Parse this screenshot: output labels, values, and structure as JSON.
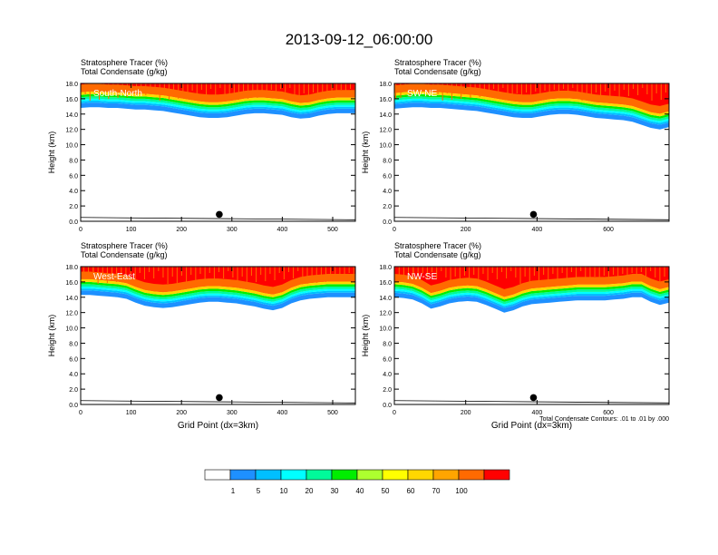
{
  "title": "2013-09-12_06:00:00",
  "colorbar": {
    "labels": [
      "1",
      "5",
      "10",
      "20",
      "30",
      "40",
      "50",
      "60",
      "70",
      "100"
    ],
    "colors": [
      "#ffffff",
      "#1e90ff",
      "#00bfff",
      "#00ffff",
      "#00fa9a",
      "#00ee00",
      "#adff2f",
      "#ffff00",
      "#ffd700",
      "#ffa500",
      "#ff6a00",
      "#ff0000"
    ]
  },
  "contour_note": "Total Condensate Contours: .01 to .01 by .000",
  "chart_data": [
    {
      "type": "heatmap",
      "label": "South-North",
      "line1": "Stratosphere Tracer   (%)",
      "line2": "Total Condensate   (g/kg)",
      "ylabel": "Height (km)",
      "xlabel": "",
      "xlim": [
        0,
        545
      ],
      "ylim": [
        0,
        18
      ],
      "xticks": [
        "0",
        "100",
        "200",
        "300",
        "400",
        "500"
      ],
      "xtick_values": [
        0,
        100,
        200,
        300,
        400,
        500
      ],
      "yticks": [
        "0.0",
        "2.0",
        "4.0",
        "6.0",
        "8.0",
        "10.0",
        "12.0",
        "14.0",
        "16.0",
        "18.0"
      ],
      "marker_x": 275,
      "tracer_base_km": [
        14.8,
        14.9,
        14.9,
        14.8,
        14.8,
        14.7,
        14.6,
        14.6,
        14.5,
        14.4,
        14.2,
        14.0,
        13.8,
        13.6,
        13.5,
        13.5,
        13.6,
        13.8,
        14.0,
        14.1,
        14.1,
        14.0,
        13.9,
        13.6,
        13.4,
        13.5,
        13.8,
        14.0,
        14.1,
        14.1,
        14.1
      ]
    },
    {
      "type": "heatmap",
      "label": "SW-NE",
      "line1": "Stratosphere Tracer   (%)",
      "line2": "Total Condensate   (g/kg)",
      "ylabel": "Height (km)",
      "xlabel": "",
      "xlim": [
        0,
        770
      ],
      "ylim": [
        0,
        18
      ],
      "xticks": [
        "0",
        "200",
        "400",
        "600"
      ],
      "xtick_values": [
        0,
        200,
        400,
        600
      ],
      "yticks": [
        "0.0",
        "2.0",
        "4.0",
        "6.0",
        "8.0",
        "10.0",
        "12.0",
        "14.0",
        "16.0",
        "18.0"
      ],
      "marker_x": 390,
      "tracer_base_km": [
        14.7,
        14.8,
        14.9,
        14.9,
        14.8,
        14.8,
        14.7,
        14.6,
        14.5,
        14.4,
        14.2,
        14.0,
        13.8,
        13.6,
        13.5,
        13.5,
        13.7,
        13.9,
        14.0,
        14.0,
        13.9,
        13.7,
        13.5,
        13.4,
        13.3,
        13.2,
        13.0,
        12.6,
        12.2,
        12.0,
        12.3
      ]
    },
    {
      "type": "heatmap",
      "label": "West-East",
      "line1": "Stratosphere Tracer   (%)",
      "line2": "Total Condensate   (g/kg)",
      "ylabel": "Height (km)",
      "xlabel": "Grid Point (dx=3km)",
      "xlim": [
        0,
        545
      ],
      "ylim": [
        0,
        18
      ],
      "xticks": [
        "0",
        "100",
        "200",
        "300",
        "400",
        "500"
      ],
      "xtick_values": [
        0,
        100,
        200,
        300,
        400,
        500
      ],
      "yticks": [
        "0.0",
        "2.0",
        "4.0",
        "6.0",
        "8.0",
        "10.0",
        "12.0",
        "14.0",
        "16.0",
        "18.0"
      ],
      "marker_x": 275,
      "tracer_base_km": [
        14.3,
        14.3,
        14.2,
        14.1,
        14.0,
        13.8,
        13.3,
        12.9,
        12.7,
        12.6,
        12.7,
        12.9,
        13.1,
        13.3,
        13.4,
        13.4,
        13.3,
        13.2,
        13.0,
        12.8,
        12.5,
        12.3,
        12.6,
        13.2,
        13.6,
        13.8,
        13.9,
        14.0,
        14.0,
        14.0,
        14.0
      ]
    },
    {
      "type": "heatmap",
      "label": "NW-SE",
      "line1": "Stratosphere Tracer   (%)",
      "line2": "Total Condensate   (g/kg)",
      "ylabel": "Height (km)",
      "xlabel": "Grid Point (dx=3km)",
      "xlim": [
        0,
        770
      ],
      "ylim": [
        0,
        18
      ],
      "xticks": [
        "0",
        "200",
        "400",
        "600"
      ],
      "xtick_values": [
        0,
        200,
        400,
        600
      ],
      "yticks": [
        "0.0",
        "2.0",
        "4.0",
        "6.0",
        "8.0",
        "10.0",
        "12.0",
        "14.0",
        "16.0",
        "18.0"
      ],
      "marker_x": 390,
      "tracer_base_km": [
        14.0,
        13.9,
        13.7,
        13.2,
        12.5,
        12.8,
        13.2,
        13.4,
        13.5,
        13.4,
        13.0,
        12.5,
        12.0,
        12.3,
        12.8,
        13.1,
        13.2,
        13.3,
        13.4,
        13.5,
        13.6,
        13.6,
        13.6,
        13.6,
        13.7,
        13.8,
        14.0,
        14.0,
        13.4,
        13.0,
        13.3
      ]
    }
  ]
}
